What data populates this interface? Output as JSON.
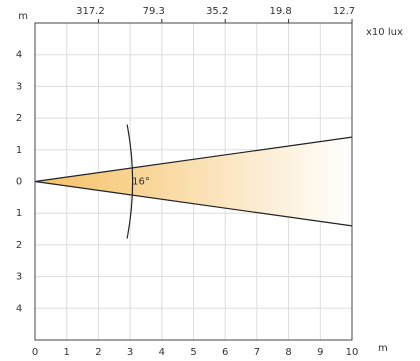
{
  "chart_data": {
    "type": "beam",
    "xlabel": "m",
    "ylabel": "m",
    "xlim": [
      0,
      10
    ],
    "ylim": [
      -5,
      5
    ],
    "xticks": [
      0,
      1,
      2,
      3,
      4,
      5,
      6,
      7,
      8,
      9,
      10
    ],
    "yticks": [
      {
        "value": -4,
        "label": "4"
      },
      {
        "value": -3,
        "label": "3"
      },
      {
        "value": -2,
        "label": "2"
      },
      {
        "value": -1,
        "label": "1"
      },
      0,
      1,
      2,
      3,
      4
    ],
    "top_axis": {
      "label": "x10 lux",
      "ticks": [
        {
          "value": 2,
          "label": "317.2"
        },
        {
          "value": 4,
          "label": "79.3"
        },
        {
          "value": 6,
          "label": "35.2"
        },
        {
          "value": 8,
          "label": "19.8"
        },
        {
          "value": 10,
          "label": "12.7"
        }
      ]
    },
    "beam": {
      "angle_label": "16°",
      "end_half_width": 1.4,
      "arc_x": 3
    },
    "color": "#f5c062",
    "grid": true
  }
}
